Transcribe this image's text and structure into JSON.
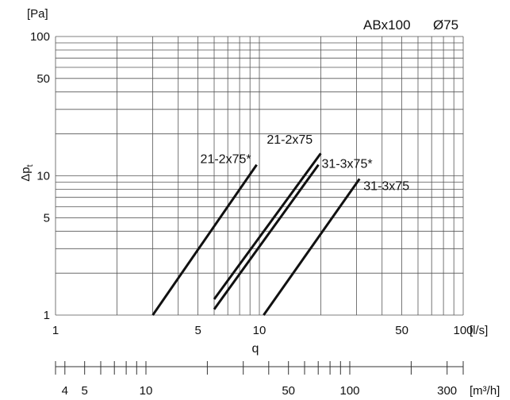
{
  "chart_data": {
    "type": "line",
    "title": "ABx100",
    "subtitle": "Ø75",
    "x_axis": {
      "scale": "log",
      "range": [
        1,
        100
      ],
      "label": "q",
      "unit": "[l/s]",
      "ticks": [
        1,
        5,
        10,
        50,
        100
      ],
      "tick_labels": [
        "1",
        "5",
        "10",
        "50",
        "100"
      ],
      "grid": [
        1,
        2,
        3,
        4,
        5,
        6,
        7,
        8,
        9,
        10,
        20,
        30,
        40,
        50,
        60,
        70,
        80,
        90,
        100
      ]
    },
    "y_axis": {
      "scale": "log",
      "range": [
        1,
        100
      ],
      "label": "Δp",
      "label_sub": "t",
      "unit": "[Pa]",
      "ticks": [
        1,
        5,
        10,
        50,
        100
      ],
      "tick_labels": [
        "1",
        "5",
        "10",
        "50",
        "100"
      ],
      "grid": [
        1,
        2,
        3,
        4,
        5,
        6,
        7,
        8,
        9,
        10,
        20,
        30,
        40,
        50,
        60,
        70,
        80,
        90,
        100
      ]
    },
    "secondary_x_axis": {
      "unit": "[m³/h]",
      "factor": 3.6,
      "ticks": [
        4,
        5,
        10,
        50,
        100,
        300
      ],
      "tick_labels": [
        "4",
        "5",
        "10",
        "50",
        "100",
        "300"
      ],
      "minor_ticks": [
        4,
        5,
        6,
        7,
        8,
        9,
        10,
        20,
        30,
        40,
        50,
        60,
        70,
        80,
        90,
        100,
        200,
        300
      ]
    },
    "series": [
      {
        "name": "21-2x75*",
        "x": [
          3.0,
          9.7
        ],
        "y": [
          1.0,
          12.0
        ]
      },
      {
        "name": "21-2x75",
        "x": [
          6.0,
          20.0
        ],
        "y": [
          1.3,
          14.5
        ]
      },
      {
        "name": "31-3x75*",
        "x": [
          6.0,
          19.5
        ],
        "y": [
          1.1,
          12.0
        ]
      },
      {
        "name": "31-3x75",
        "x": [
          10.5,
          31.0
        ],
        "y": [
          1.0,
          9.5
        ]
      }
    ],
    "grid": true
  }
}
